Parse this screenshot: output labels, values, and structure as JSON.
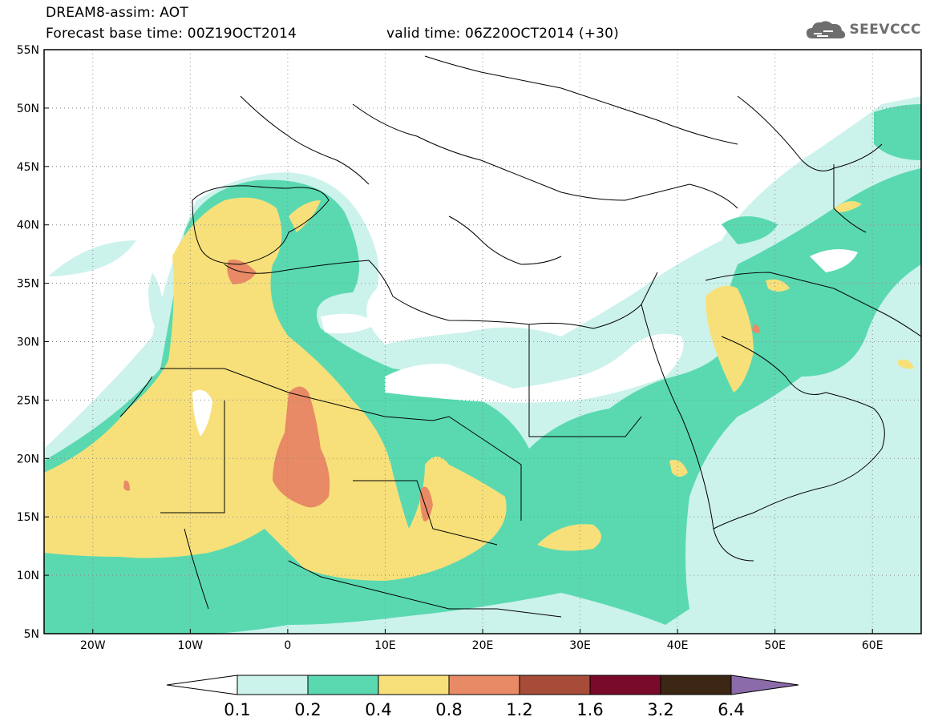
{
  "header": {
    "title": "DREAM8-assim: AOT",
    "base_time": "Forecast base time: 00Z19OCT2014",
    "valid_time": "valid time: 06Z20OCT2014 (+30)"
  },
  "logo": {
    "text": "SEEVCCC",
    "icon": "cloud-icon"
  },
  "map": {
    "lon_range": [
      -25,
      65
    ],
    "lat_range": [
      5,
      55
    ],
    "lat_labels": [
      "5N",
      "10N",
      "15N",
      "20N",
      "25N",
      "30N",
      "35N",
      "40N",
      "45N",
      "50N",
      "55N"
    ],
    "lon_labels": [
      "20W",
      "10W",
      "0",
      "10E",
      "20E",
      "30E",
      "40E",
      "50E",
      "60E"
    ],
    "gridlines": "dotted"
  },
  "colorbar": {
    "labels": [
      "0.1",
      "0.2",
      "0.4",
      "0.8",
      "1.2",
      "1.6",
      "3.2",
      "6.4"
    ],
    "colors": [
      "#ccf2ec",
      "#5ad9b1",
      "#f7e07a",
      "#e88a66",
      "#a84c3a",
      "#7a0a2a",
      "#3c2614",
      "#8b6baa"
    ]
  }
}
